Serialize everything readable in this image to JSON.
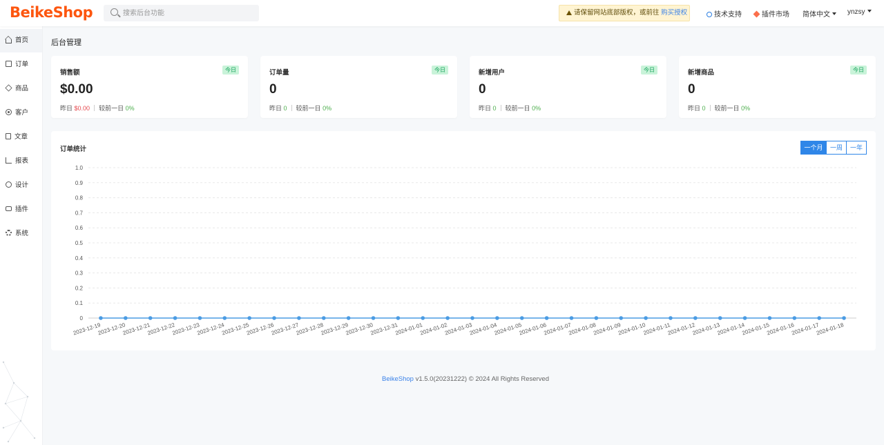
{
  "header": {
    "logo": "BeikeShop",
    "search_placeholder": "搜索后台功能",
    "notice_text": "请保留网站底部版权，或前往 ",
    "notice_link": "购买授权",
    "links": {
      "tech_support": "技术支持",
      "plugin_market": "插件市场",
      "language": "简体中文",
      "user": "ynzsy"
    },
    "icons": [
      "search-icon",
      "warning-icon",
      "globe-icon",
      "gem-icon",
      "chevron-down-icon"
    ]
  },
  "sidebar": {
    "items": [
      {
        "label": "首页",
        "icon": "home-icon",
        "active": true
      },
      {
        "label": "订单",
        "icon": "clipboard-icon"
      },
      {
        "label": "商品",
        "icon": "box-icon"
      },
      {
        "label": "客户",
        "icon": "user-icon"
      },
      {
        "label": "文章",
        "icon": "file-icon"
      },
      {
        "label": "报表",
        "icon": "bar-chart-icon"
      },
      {
        "label": "设计",
        "icon": "palette-icon"
      },
      {
        "label": "插件",
        "icon": "plugin-icon"
      },
      {
        "label": "系统",
        "icon": "gear-icon"
      }
    ]
  },
  "page": {
    "title": "后台管理"
  },
  "cards": [
    {
      "title": "销售额",
      "badge": "今日",
      "value": "$0.00",
      "yesterday_label": "昨日",
      "yesterday_value": "$0.00",
      "compare_label": "较前一日",
      "compare_value": "0%"
    },
    {
      "title": "订单量",
      "badge": "今日",
      "value": "0",
      "yesterday_label": "昨日",
      "yesterday_value": "0",
      "compare_label": "较前一日",
      "compare_value": "0%"
    },
    {
      "title": "新增用户",
      "badge": "今日",
      "value": "0",
      "yesterday_label": "昨日",
      "yesterday_value": "0",
      "compare_label": "较前一日",
      "compare_value": "0%"
    },
    {
      "title": "新增商品",
      "badge": "今日",
      "value": "0",
      "yesterday_label": "昨日",
      "yesterday_value": "0",
      "compare_label": "较前一日",
      "compare_value": "0%"
    }
  ],
  "order_chart": {
    "title": "订单统计",
    "ranges": [
      "一个月",
      "一周",
      "一年"
    ],
    "active_range": "一个月"
  },
  "chart_data": {
    "type": "line",
    "title": "订单统计",
    "x": [
      "2023-12-19",
      "2023-12-20",
      "2023-12-21",
      "2023-12-22",
      "2023-12-23",
      "2023-12-24",
      "2023-12-25",
      "2023-12-26",
      "2023-12-27",
      "2023-12-28",
      "2023-12-29",
      "2023-12-30",
      "2023-12-31",
      "2024-01-01",
      "2024-01-02",
      "2024-01-03",
      "2024-01-04",
      "2024-01-05",
      "2024-01-06",
      "2024-01-07",
      "2024-01-08",
      "2024-01-09",
      "2024-01-10",
      "2024-01-11",
      "2024-01-12",
      "2024-01-13",
      "2024-01-14",
      "2024-01-15",
      "2024-01-16",
      "2024-01-17",
      "2024-01-18"
    ],
    "series": [
      {
        "values": [
          0,
          0,
          0,
          0,
          0,
          0,
          0,
          0,
          0,
          0,
          0,
          0,
          0,
          0,
          0,
          0,
          0,
          0,
          0,
          0,
          0,
          0,
          0,
          0,
          0,
          0,
          0,
          0,
          0,
          0,
          0
        ]
      }
    ],
    "ylim": [
      0,
      1
    ],
    "yticks": [
      "0",
      "0.1",
      "0.2",
      "0.3",
      "0.4",
      "0.5",
      "0.6",
      "0.7",
      "0.8",
      "0.9",
      "1.0"
    ],
    "grid": true,
    "line_color": "#4a9be3"
  },
  "footer": {
    "brand": "BeikeShop",
    "text": " v1.5.0(20231222) © 2024 All Rights Reserved"
  },
  "colors": {
    "brand": "#fd560f",
    "primary": "#2f86e8",
    "success_badge": "#c9f3d9",
    "notice_bg": "#fff4d2"
  }
}
